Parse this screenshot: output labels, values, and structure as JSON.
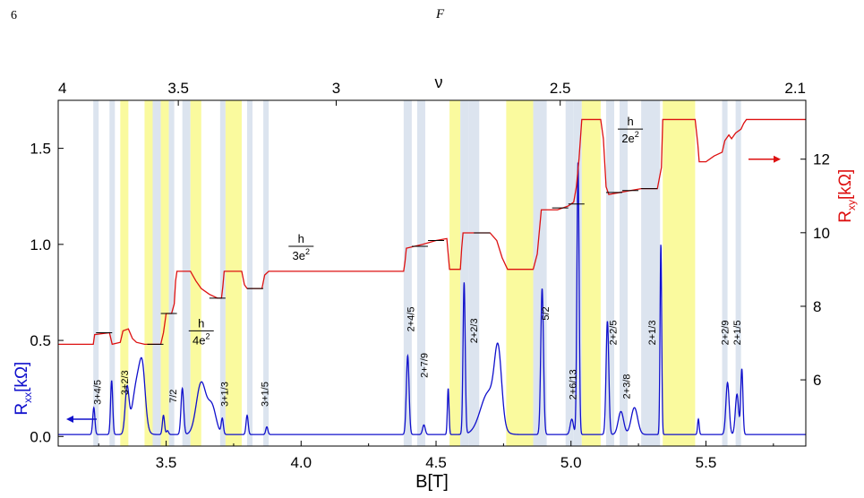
{
  "page": {
    "page_number": "6",
    "figure_letter": "F"
  },
  "chart_data": {
    "type": "line",
    "xlabel": "B[T]",
    "ylabel_left": {
      "base": "R",
      "sub": "xx",
      "unit": "[kΩ]"
    },
    "ylabel_right": {
      "base": "R",
      "sub": "xy",
      "unit": "[kΩ]"
    },
    "xlim": [
      3.1,
      5.87
    ],
    "ylim_left": [
      -0.05,
      1.75
    ],
    "ylim_right": [
      4.2,
      13.6
    ],
    "x_ticks": [
      "3.5",
      "4.0",
      "4.5",
      "5.0",
      "5.5"
    ],
    "left_ticks": [
      "0.0",
      "0.5",
      "1.0",
      "1.5"
    ],
    "right_ticks": [
      "6",
      "8",
      "10",
      "12"
    ],
    "top_axis": {
      "label": "ν",
      "ticks": [
        {
          "text": "4",
          "b": 3.1
        },
        {
          "text": "3.5",
          "b": 3.545
        },
        {
          "text": "3",
          "b": 4.13
        },
        {
          "text": "2.5",
          "b": 4.96
        },
        {
          "text": "2.1",
          "b": 5.87
        }
      ]
    },
    "colors": {
      "rxx": "#1010cc",
      "rxy": "#dd1111",
      "band_yellow": "#fafa9e",
      "band_blue": "#dce4ef"
    },
    "bands": [
      {
        "x0": 3.23,
        "x1": 3.25,
        "color": "blue"
      },
      {
        "x0": 3.29,
        "x1": 3.31,
        "color": "blue"
      },
      {
        "x0": 3.33,
        "x1": 3.36,
        "color": "yellow"
      },
      {
        "x0": 3.42,
        "x1": 3.45,
        "color": "yellow"
      },
      {
        "x0": 3.45,
        "x1": 3.48,
        "color": "blue"
      },
      {
        "x0": 3.48,
        "x1": 3.51,
        "color": "yellow"
      },
      {
        "x0": 3.51,
        "x1": 3.53,
        "color": "blue"
      },
      {
        "x0": 3.56,
        "x1": 3.59,
        "color": "blue"
      },
      {
        "x0": 3.59,
        "x1": 3.63,
        "color": "yellow"
      },
      {
        "x0": 3.7,
        "x1": 3.72,
        "color": "blue"
      },
      {
        "x0": 3.72,
        "x1": 3.78,
        "color": "yellow"
      },
      {
        "x0": 3.8,
        "x1": 3.82,
        "color": "blue"
      },
      {
        "x0": 3.86,
        "x1": 3.88,
        "color": "blue"
      },
      {
        "x0": 4.38,
        "x1": 4.41,
        "color": "blue"
      },
      {
        "x0": 4.43,
        "x1": 4.46,
        "color": "blue"
      },
      {
        "x0": 4.55,
        "x1": 4.59,
        "color": "yellow"
      },
      {
        "x0": 4.59,
        "x1": 4.62,
        "color": "blue"
      },
      {
        "x0": 4.62,
        "x1": 4.66,
        "color": "blue"
      },
      {
        "x0": 4.76,
        "x1": 4.86,
        "color": "yellow"
      },
      {
        "x0": 4.86,
        "x1": 4.91,
        "color": "blue"
      },
      {
        "x0": 4.98,
        "x1": 5.01,
        "color": "blue"
      },
      {
        "x0": 5.01,
        "x1": 5.04,
        "color": "blue"
      },
      {
        "x0": 5.04,
        "x1": 5.11,
        "color": "yellow"
      },
      {
        "x0": 5.13,
        "x1": 5.16,
        "color": "blue"
      },
      {
        "x0": 5.18,
        "x1": 5.21,
        "color": "blue"
      },
      {
        "x0": 5.26,
        "x1": 5.33,
        "color": "blue"
      },
      {
        "x0": 5.34,
        "x1": 5.46,
        "color": "yellow"
      },
      {
        "x0": 5.56,
        "x1": 5.58,
        "color": "blue"
      },
      {
        "x0": 5.61,
        "x1": 5.63,
        "color": "blue"
      }
    ],
    "fraction_labels": [
      {
        "text": "3+4/5",
        "b": 3.245,
        "rxx": 0.23
      },
      {
        "text": "3+2/3",
        "b": 3.345,
        "rxx": 0.28
      },
      {
        "text": "7/2",
        "b": 3.525,
        "rxx": 0.21
      },
      {
        "text": "3+1/3",
        "b": 3.715,
        "rxx": 0.22
      },
      {
        "text": "3+1/5",
        "b": 3.865,
        "rxx": 0.22
      },
      {
        "text": "2+4/5",
        "b": 4.405,
        "rxx": 0.61
      },
      {
        "text": "2+7/9",
        "b": 4.455,
        "rxx": 0.37
      },
      {
        "text": "2+2/3",
        "b": 4.64,
        "rxx": 0.55
      },
      {
        "text": "5/2",
        "b": 4.905,
        "rxx": 0.64
      },
      {
        "text": "2+6/13",
        "b": 5.005,
        "rxx": 0.27
      },
      {
        "text": "2+2/5",
        "b": 5.155,
        "rxx": 0.54
      },
      {
        "text": "2+3/8",
        "b": 5.205,
        "rxx": 0.26
      },
      {
        "text": "2+1/3",
        "b": 5.3,
        "rxx": 0.54
      },
      {
        "text": "2+2/9",
        "b": 5.57,
        "rxx": 0.54
      },
      {
        "text": "2+1/5",
        "b": 5.615,
        "rxx": 0.54
      }
    ],
    "plateau_annotations": [
      {
        "num": "h",
        "den": "4e",
        "sup": "2",
        "b": 3.63,
        "rxx": 0.55
      },
      {
        "num": "h",
        "den": "3e",
        "sup": "2",
        "b": 4.0,
        "rxx": 0.99
      },
      {
        "num": "h",
        "den": "2e",
        "sup": "2",
        "b": 5.22,
        "rxx": 1.6
      }
    ],
    "series": [
      {
        "name": "Rxx",
        "axis": "left",
        "baseline": 0.01,
        "peaks": [
          {
            "b": 3.232,
            "h": 0.14,
            "w": 0.004
          },
          {
            "b": 3.298,
            "h": 0.28,
            "w": 0.004
          },
          {
            "b": 3.355,
            "h": 0.23,
            "w": 0.007
          },
          {
            "b": 3.395,
            "h": 0.29,
            "w": 0.018
          },
          {
            "b": 3.413,
            "h": 0.2,
            "w": 0.01
          },
          {
            "b": 3.49,
            "h": 0.1,
            "w": 0.004
          },
          {
            "b": 3.505,
            "h": 0.02,
            "w": 0.004
          },
          {
            "b": 3.56,
            "h": 0.24,
            "w": 0.005
          },
          {
            "b": 3.63,
            "h": 0.27,
            "w": 0.018
          },
          {
            "b": 3.67,
            "h": 0.14,
            "w": 0.015
          },
          {
            "b": 3.708,
            "h": 0.08,
            "w": 0.004
          },
          {
            "b": 3.8,
            "h": 0.1,
            "w": 0.004
          },
          {
            "b": 3.873,
            "h": 0.04,
            "w": 0.004
          },
          {
            "b": 4.395,
            "h": 0.41,
            "w": 0.005
          },
          {
            "b": 4.455,
            "h": 0.05,
            "w": 0.005
          },
          {
            "b": 4.545,
            "h": 0.24,
            "w": 0.003
          },
          {
            "b": 4.604,
            "h": 0.79,
            "w": 0.004
          },
          {
            "b": 4.695,
            "h": 0.22,
            "w": 0.03
          },
          {
            "b": 4.73,
            "h": 0.36,
            "w": 0.013
          },
          {
            "b": 4.893,
            "h": 0.76,
            "w": 0.005
          },
          {
            "b": 5.003,
            "h": 0.08,
            "w": 0.006
          },
          {
            "b": 5.026,
            "h": 1.42,
            "w": 0.004
          },
          {
            "b": 5.135,
            "h": 0.59,
            "w": 0.005
          },
          {
            "b": 5.185,
            "h": 0.12,
            "w": 0.01
          },
          {
            "b": 5.235,
            "h": 0.14,
            "w": 0.012
          },
          {
            "b": 5.333,
            "h": 0.99,
            "w": 0.003
          },
          {
            "b": 5.472,
            "h": 0.08,
            "w": 0.003
          },
          {
            "b": 5.58,
            "h": 0.27,
            "w": 0.006
          },
          {
            "b": 5.615,
            "h": 0.21,
            "w": 0.006
          },
          {
            "b": 5.633,
            "h": 0.34,
            "w": 0.004
          }
        ]
      },
      {
        "name": "Rxy",
        "axis": "left",
        "points": [
          [
            3.1,
            0.48
          ],
          [
            3.23,
            0.48
          ],
          [
            3.235,
            0.53
          ],
          [
            3.29,
            0.54
          ],
          [
            3.3,
            0.48
          ],
          [
            3.33,
            0.49
          ],
          [
            3.34,
            0.55
          ],
          [
            3.36,
            0.56
          ],
          [
            3.375,
            0.51
          ],
          [
            3.39,
            0.49
          ],
          [
            3.42,
            0.48
          ],
          [
            3.48,
            0.48
          ],
          [
            3.49,
            0.54
          ],
          [
            3.5,
            0.64
          ],
          [
            3.52,
            0.64
          ],
          [
            3.53,
            0.69
          ],
          [
            3.535,
            0.81
          ],
          [
            3.54,
            0.86
          ],
          [
            3.59,
            0.86
          ],
          [
            3.61,
            0.81
          ],
          [
            3.63,
            0.77
          ],
          [
            3.66,
            0.74
          ],
          [
            3.69,
            0.72
          ],
          [
            3.705,
            0.72
          ],
          [
            3.71,
            0.78
          ],
          [
            3.715,
            0.86
          ],
          [
            3.78,
            0.86
          ],
          [
            3.79,
            0.79
          ],
          [
            3.8,
            0.77
          ],
          [
            3.855,
            0.77
          ],
          [
            3.865,
            0.84
          ],
          [
            3.88,
            0.86
          ],
          [
            4.38,
            0.86
          ],
          [
            4.385,
            0.91
          ],
          [
            4.39,
            0.98
          ],
          [
            4.42,
            0.99
          ],
          [
            4.45,
            1.0
          ],
          [
            4.5,
            1.02
          ],
          [
            4.54,
            1.03
          ],
          [
            4.55,
            0.87
          ],
          [
            4.59,
            0.87
          ],
          [
            4.595,
            0.98
          ],
          [
            4.6,
            1.06
          ],
          [
            4.66,
            1.06
          ],
          [
            4.7,
            1.06
          ],
          [
            4.725,
            1.02
          ],
          [
            4.745,
            0.93
          ],
          [
            4.765,
            0.87
          ],
          [
            4.86,
            0.87
          ],
          [
            4.875,
            0.95
          ],
          [
            4.89,
            1.18
          ],
          [
            4.95,
            1.18
          ],
          [
            4.99,
            1.2
          ],
          [
            5.01,
            1.22
          ],
          [
            5.02,
            1.3
          ],
          [
            5.03,
            1.45
          ],
          [
            5.04,
            1.65
          ],
          [
            5.11,
            1.65
          ],
          [
            5.12,
            1.55
          ],
          [
            5.13,
            1.3
          ],
          [
            5.14,
            1.26
          ],
          [
            5.18,
            1.27
          ],
          [
            5.22,
            1.28
          ],
          [
            5.26,
            1.29
          ],
          [
            5.32,
            1.29
          ],
          [
            5.335,
            1.4
          ],
          [
            5.34,
            1.65
          ],
          [
            5.46,
            1.65
          ],
          [
            5.47,
            1.52
          ],
          [
            5.475,
            1.43
          ],
          [
            5.5,
            1.43
          ],
          [
            5.53,
            1.46
          ],
          [
            5.56,
            1.48
          ],
          [
            5.57,
            1.54
          ],
          [
            5.585,
            1.57
          ],
          [
            5.595,
            1.55
          ],
          [
            5.61,
            1.58
          ],
          [
            5.63,
            1.6
          ],
          [
            5.64,
            1.63
          ],
          [
            5.65,
            1.65
          ],
          [
            5.87,
            1.65
          ]
        ]
      }
    ]
  }
}
